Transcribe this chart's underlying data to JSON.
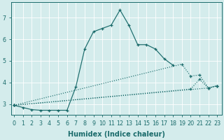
{
  "xlabel": "Humidex (Indice chaleur)",
  "background_color": "#d4ecec",
  "grid_color": "#ffffff",
  "line_color": "#1a6b6b",
  "line1_x": [
    0,
    1,
    2,
    3,
    4,
    5,
    6,
    7,
    8,
    9,
    10,
    11,
    12,
    13,
    14,
    15,
    16,
    17,
    18
  ],
  "line1_y": [
    2.95,
    2.85,
    2.75,
    2.72,
    2.72,
    2.72,
    2.72,
    3.8,
    5.55,
    6.35,
    6.5,
    6.65,
    7.35,
    6.65,
    5.75,
    5.75,
    5.55,
    5.1,
    4.8
  ],
  "line2_x": [
    0,
    19,
    20,
    21,
    22,
    23
  ],
  "line2_y": [
    2.95,
    4.85,
    4.3,
    4.35,
    3.75,
    3.85
  ],
  "line3_x": [
    0,
    20,
    21,
    22,
    23
  ],
  "line3_y": [
    2.95,
    3.7,
    4.15,
    3.75,
    3.85
  ],
  "line4_x": [
    0,
    22,
    23
  ],
  "line4_y": [
    2.95,
    3.75,
    3.85
  ],
  "yticks": [
    3,
    4,
    5,
    6,
    7
  ],
  "xticks": [
    0,
    1,
    2,
    3,
    4,
    5,
    6,
    7,
    8,
    9,
    10,
    11,
    12,
    13,
    14,
    15,
    16,
    17,
    18,
    19,
    20,
    21,
    22,
    23
  ],
  "xtick_labels": [
    "0",
    "1",
    "2",
    "3",
    "4",
    "5",
    "6",
    "7",
    "8",
    "9",
    "10",
    "11",
    "12",
    "13",
    "14",
    "15",
    "16",
    "17",
    "18",
    "19",
    "20",
    "21",
    "22",
    "23"
  ],
  "ylim": [
    2.5,
    7.7
  ],
  "xlim": [
    -0.3,
    23.5
  ],
  "tick_fontsize": 5.8,
  "label_fontsize": 7.0
}
